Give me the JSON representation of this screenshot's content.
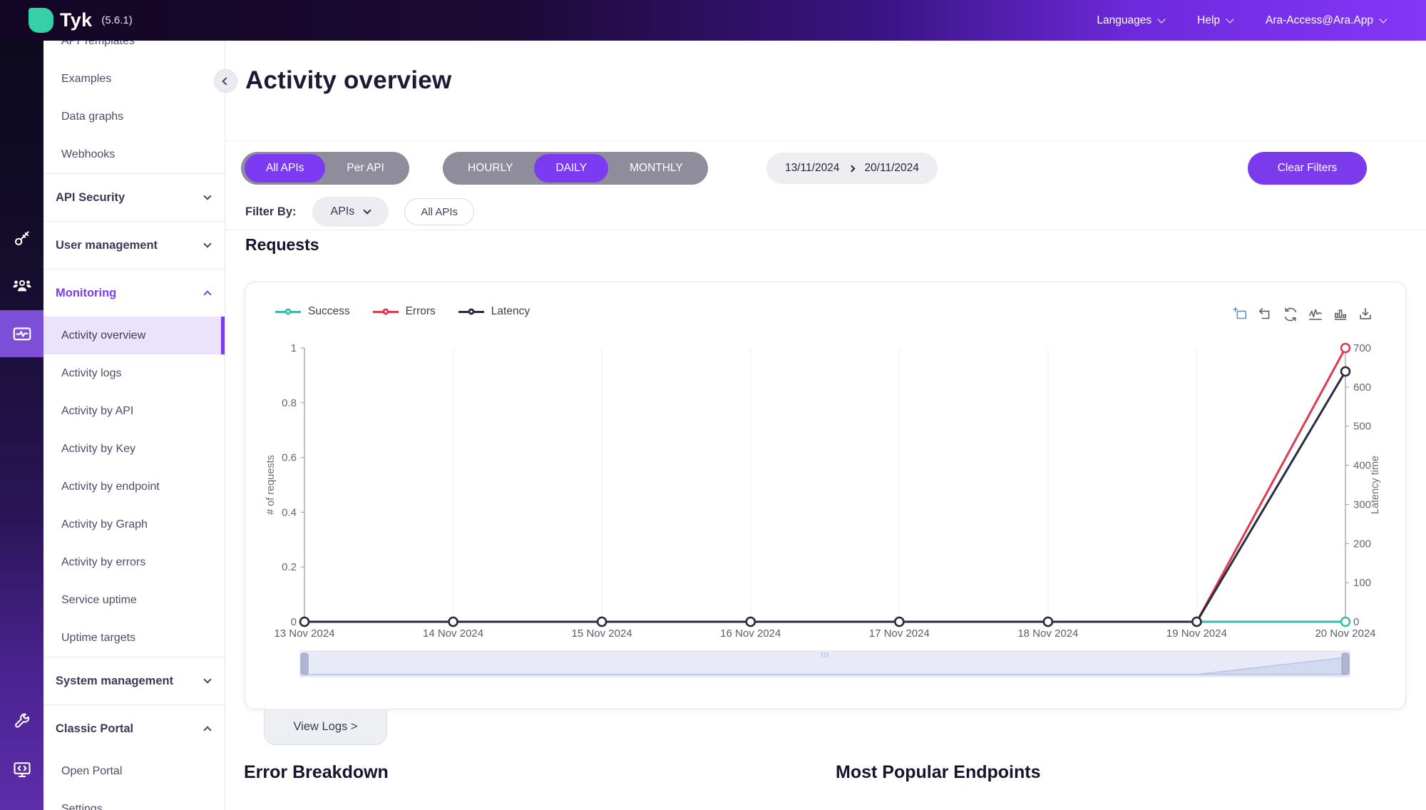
{
  "topbar": {
    "brand": "Tyk",
    "version": "(5.6.1)",
    "menus": [
      {
        "label": "Languages"
      },
      {
        "label": "Help"
      },
      {
        "label": "Ara-Access@Ara.App"
      }
    ]
  },
  "sidebar": {
    "rail_icons": [
      {
        "name": "api-security",
        "icon": "key"
      },
      {
        "name": "user-management",
        "icon": "users"
      },
      {
        "name": "monitoring",
        "icon": "activity-monitor",
        "active": true
      },
      {
        "name": "system-management",
        "icon": "wrench"
      },
      {
        "name": "classic-portal",
        "icon": "portal-monitor"
      }
    ],
    "items": [
      {
        "label": "API Templates",
        "type": "sub"
      },
      {
        "label": "Examples",
        "type": "sub"
      },
      {
        "label": "Data graphs",
        "type": "sub"
      },
      {
        "label": "Webhooks",
        "type": "sub"
      },
      {
        "label": "API Security",
        "type": "section",
        "chevron": "down",
        "divider_before": true
      },
      {
        "label": "User management",
        "type": "section",
        "chevron": "down",
        "divider_before": true
      },
      {
        "label": "Monitoring",
        "type": "section",
        "chevron": "up",
        "active": true,
        "divider_before": true
      },
      {
        "label": "Activity overview",
        "type": "sub",
        "selected": true
      },
      {
        "label": "Activity logs",
        "type": "sub"
      },
      {
        "label": "Activity by API",
        "type": "sub"
      },
      {
        "label": "Activity by Key",
        "type": "sub"
      },
      {
        "label": "Activity by endpoint",
        "type": "sub"
      },
      {
        "label": "Activity by Graph",
        "type": "sub"
      },
      {
        "label": "Activity by errors",
        "type": "sub"
      },
      {
        "label": "Service uptime",
        "type": "sub"
      },
      {
        "label": "Uptime targets",
        "type": "sub"
      },
      {
        "label": "System management",
        "type": "section",
        "chevron": "down",
        "divider_before": true
      },
      {
        "label": "Classic Portal",
        "type": "section",
        "chevron": "up",
        "divider_before": true
      },
      {
        "label": "Open Portal",
        "type": "sub"
      },
      {
        "label": "Settings",
        "type": "sub"
      }
    ]
  },
  "main": {
    "title": "Activity overview",
    "requests_heading": "Requests",
    "view_logs_label": "View Logs >",
    "error_breakdown_heading": "Error Breakdown",
    "popular_endpoints_heading": "Most Popular Endpoints"
  },
  "filters": {
    "api_scope": {
      "options": [
        "All APIs",
        "Per API"
      ],
      "active": "All APIs"
    },
    "period": {
      "options": [
        "HOURLY",
        "DAILY",
        "MONTHLY"
      ],
      "active": "DAILY"
    },
    "date_from": "13/11/2024",
    "date_to": "20/11/2024",
    "clear_label": "Clear Filters",
    "filter_by_label": "Filter By:",
    "dropdown_value": "APIs",
    "chip_label": "All APIs"
  },
  "chart_toolbar": {
    "icons": [
      "zoom-select",
      "zoom-reset",
      "restore",
      "line-chart",
      "bar-chart",
      "save-image"
    ],
    "active_icon": "zoom-select"
  },
  "chart_data": {
    "type": "line",
    "x": [
      "13 Nov 2024",
      "14 Nov 2024",
      "15 Nov 2024",
      "16 Nov 2024",
      "17 Nov 2024",
      "18 Nov 2024",
      "19 Nov 2024",
      "20 Nov 2024"
    ],
    "series": [
      {
        "name": "Success",
        "color": "#3fb9ab",
        "axis": "left",
        "values": [
          0,
          0,
          0,
          0,
          0,
          0,
          0,
          0
        ]
      },
      {
        "name": "Errors",
        "color": "#e13a50",
        "axis": "left",
        "values": [
          0,
          0,
          0,
          0,
          0,
          0,
          0,
          1
        ]
      },
      {
        "name": "Latency",
        "color": "#282c43",
        "axis": "right",
        "values": [
          0,
          0,
          0,
          0,
          0,
          0,
          0,
          640
        ]
      }
    ],
    "left_axis": {
      "name": "# of requests",
      "min": 0,
      "max": 1,
      "ticks": [
        0,
        0.2,
        0.4,
        0.6,
        0.8,
        1
      ]
    },
    "right_axis": {
      "name": "Latency time",
      "min": 0,
      "max": 700,
      "ticks": [
        0,
        100,
        200,
        300,
        400,
        500,
        600,
        700
      ]
    },
    "legend_position": "top-left",
    "grid": "vertical-only",
    "datazoom_slider": true
  },
  "colors": {
    "accent_purple": "#7b3bec",
    "toggle_gray": "#8f8c9b",
    "selected_item_bg": "#ebe2fb",
    "success_teal": "#3fb9ab",
    "errors_red": "#e13a50",
    "latency_navy": "#282c43"
  }
}
